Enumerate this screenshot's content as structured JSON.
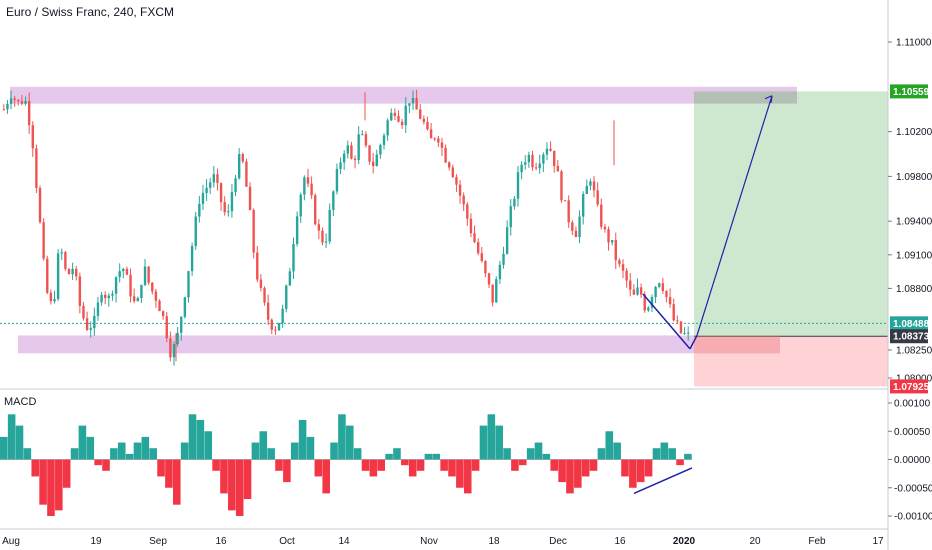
{
  "chart_data": [
    {
      "type": "candlestick",
      "title": "Euro / Swiss Franc, 240, FXCM",
      "y_ticks": [
        "1.11000",
        "1.10200",
        "1.09800",
        "1.09400",
        "1.09100",
        "1.08800",
        "1.08250",
        "1.08000"
      ],
      "y_tick_values": [
        1.11,
        1.102,
        1.098,
        1.094,
        1.091,
        1.088,
        1.0825,
        1.08
      ],
      "price_tags": [
        {
          "label": "1.10559",
          "value": 1.10559,
          "color": "#26a426"
        },
        {
          "label": "1.08488",
          "value": 1.08488,
          "color": "#26a69a"
        },
        {
          "label": "1.08373",
          "value": 1.08373,
          "color": "#363a45"
        },
        {
          "label": "1.07925",
          "value": 1.07925,
          "color": "#f23645"
        }
      ],
      "x_tick_labels": [
        "Aug",
        "19",
        "Sep",
        "16",
        "Oct",
        "14",
        "Nov",
        "18",
        "Dec",
        "16",
        "2020",
        "20",
        "Feb",
        "17"
      ],
      "price_path": [
        1.104,
        1.1055,
        1.1045,
        1.105,
        1.102,
        1.095,
        1.088,
        1.086,
        1.092,
        1.089,
        1.09,
        1.086,
        1.0845,
        1.085,
        1.088,
        1.087,
        1.089,
        1.09,
        1.088,
        1.086,
        1.09,
        1.088,
        1.087,
        1.085,
        1.082,
        1.084,
        1.088,
        1.092,
        1.096,
        1.097,
        1.098,
        1.096,
        1.094,
        1.098,
        1.1,
        1.096,
        1.09,
        1.087,
        1.085,
        1.0845,
        1.086,
        1.09,
        1.095,
        1.098,
        1.096,
        1.093,
        1.092,
        1.096,
        1.099,
        1.101,
        1.099,
        1.102,
        1.1,
        1.099,
        1.101,
        1.103,
        1.104,
        1.103,
        1.105,
        1.104,
        1.103,
        1.101,
        1.102,
        1.1,
        1.099,
        1.097,
        1.095,
        1.093,
        1.091,
        1.089,
        1.087,
        1.09,
        1.093,
        1.096,
        1.099,
        1.1,
        1.099,
        1.1,
        1.101,
        1.099,
        1.096,
        1.094,
        1.093,
        1.096,
        1.098,
        1.095,
        1.093,
        1.092,
        1.09,
        1.089,
        1.087,
        1.088,
        1.086,
        1.088,
        1.089,
        1.087,
        1.085,
        1.084,
        1.0837
      ],
      "zones": [
        {
          "name": "resistance",
          "from": 1.1045,
          "to": 1.106,
          "color": "#e1bee7"
        },
        {
          "name": "support",
          "from": 1.0822,
          "to": 1.0838,
          "color": "#e1bee7"
        }
      ],
      "position": {
        "entry": 1.08373,
        "target": 1.10559,
        "stop": 1.07925
      },
      "series": [
        {
          "name": "",
          "color_up": "#26a69a",
          "color_down": "#ef5350"
        }
      ]
    },
    {
      "type": "bar",
      "title": "MACD",
      "y_ticks": [
        "0.00100",
        "0.00050",
        "0.00000",
        "-0.00050",
        "-0.00100"
      ],
      "y_tick_values": [
        0.001,
        0.0005,
        0.0,
        -0.0005,
        -0.001
      ],
      "values": [
        0.0004,
        0.0008,
        0.0006,
        0.0002,
        -0.0003,
        -0.0008,
        -0.001,
        -0.0009,
        -0.0005,
        0.0002,
        0.0006,
        0.0004,
        -0.0001,
        -0.0002,
        0.0002,
        0.0003,
        0.0001,
        0.0003,
        0.0004,
        0.0002,
        -0.0003,
        -0.0005,
        -0.0008,
        0.0003,
        0.0008,
        0.0007,
        0.0005,
        -0.0002,
        -0.0006,
        -0.0009,
        -0.001,
        -0.0007,
        0.0003,
        0.0005,
        0.0002,
        -0.0002,
        -0.0004,
        0.0003,
        0.0007,
        0.0004,
        -0.0003,
        -0.0006,
        0.0003,
        0.0008,
        0.0006,
        0.0002,
        -0.0002,
        -0.0003,
        -0.0002,
        0.0001,
        0.0002,
        -0.0001,
        -0.0003,
        -0.0002,
        0.0001,
        0.0001,
        -0.0002,
        -0.0003,
        -0.0005,
        -0.0006,
        -0.0002,
        0.0006,
        0.0008,
        0.0006,
        0.0002,
        -0.0002,
        -0.0001,
        0.0002,
        0.0003,
        0.0001,
        -0.0002,
        -0.0004,
        -0.0006,
        -0.0005,
        -0.0003,
        -0.0002,
        0.0002,
        0.0005,
        0.0003,
        -0.0003,
        -0.0005,
        -0.0004,
        -0.0003,
        0.0002,
        0.0003,
        0.0002,
        -0.0001,
        0.0001
      ],
      "colors": {
        "positive": "#26a69a",
        "negative": "#f23645"
      }
    }
  ]
}
